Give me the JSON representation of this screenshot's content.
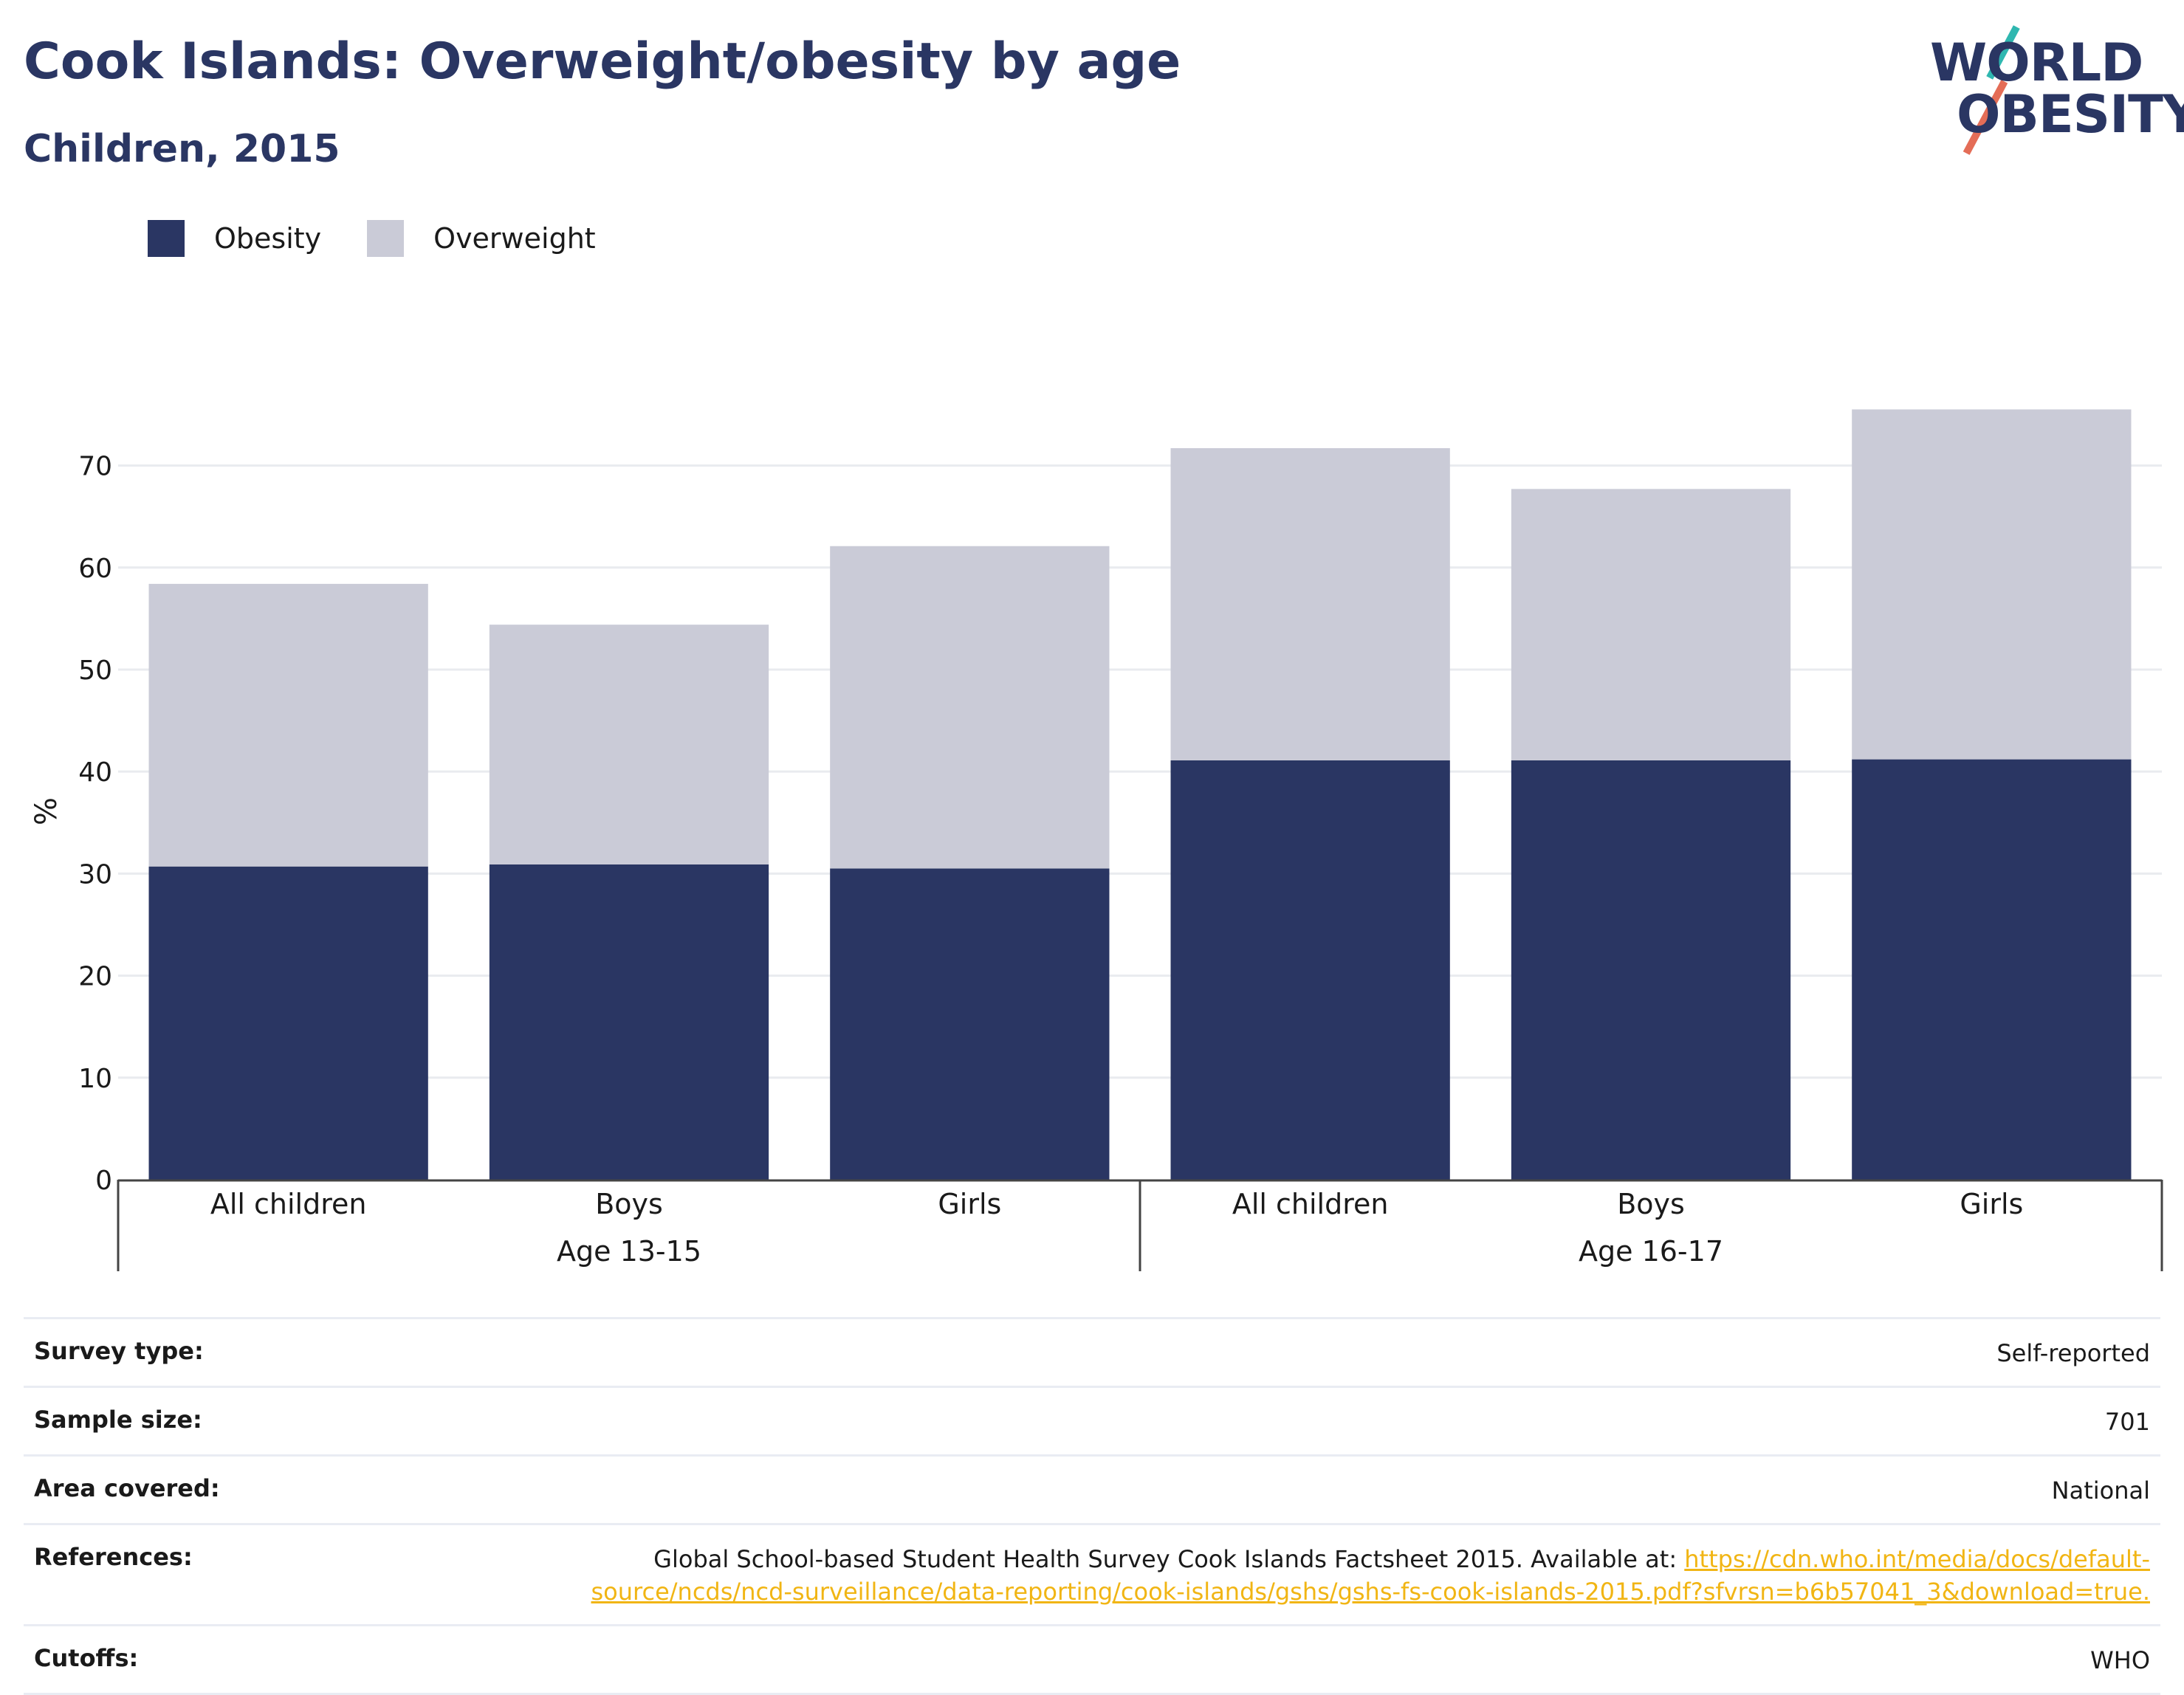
{
  "header": {
    "title": "Cook Islands: Overweight/obesity by age",
    "subtitle": "Children, 2015"
  },
  "logo": {
    "line1": "WORLD",
    "line2": "OBESITY"
  },
  "colors": {
    "obesity": "#2a3663",
    "overweight": "#cacbd7",
    "grid": "#e9ebef",
    "text": "#1a1a1a",
    "link": "#f1b514"
  },
  "legend": [
    {
      "label": "Obesity",
      "color": "#2a3663"
    },
    {
      "label": "Overweight",
      "color": "#cacbd7"
    }
  ],
  "chart_data": {
    "type": "bar",
    "stacked": true,
    "ylabel": "%",
    "ylim": [
      0,
      78
    ],
    "yticks": [
      0,
      10,
      20,
      30,
      40,
      50,
      60,
      70
    ],
    "grid": true,
    "legend_position": "top-left",
    "categories": [
      "All children",
      "Boys",
      "Girls",
      "All children",
      "Boys",
      "Girls"
    ],
    "groups": [
      {
        "label": "Age 13-15",
        "categories": [
          0,
          1,
          2
        ]
      },
      {
        "label": "Age 16-17",
        "categories": [
          3,
          4,
          5
        ]
      }
    ],
    "series": [
      {
        "name": "Obesity",
        "values": [
          30.7,
          30.9,
          30.5,
          41.1,
          41.1,
          41.2
        ]
      },
      {
        "name": "Overweight",
        "values": [
          27.7,
          23.5,
          31.6,
          30.6,
          26.6,
          34.3
        ]
      }
    ]
  },
  "meta": [
    {
      "label": "Survey type:",
      "value": "Self-reported"
    },
    {
      "label": "Sample size:",
      "value": "701"
    },
    {
      "label": "Area covered:",
      "value": "National"
    },
    {
      "label": "References:",
      "value": "Global School-based Student Health Survey Cook Islands Factsheet 2015. Available at: ",
      "link": "https://cdn.who.int/media/docs/default-source/ncds/ncd-surveillance/data-reporting/cook-islands/gshs/gshs-fs-cook-islands-2015.pdf?sfvrsn=b6b57041_3&download=true."
    },
    {
      "label": "Cutoffs:",
      "value": "WHO"
    }
  ]
}
